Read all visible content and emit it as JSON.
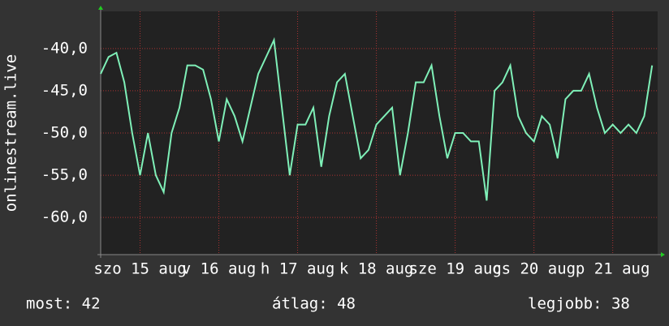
{
  "chart_data": {
    "type": "line",
    "y_label": "onlinestream.live",
    "x": [
      0,
      0.1,
      0.2,
      0.3,
      0.4,
      0.5,
      0.6,
      0.7,
      0.8,
      0.9,
      1,
      1.1,
      1.2,
      1.3,
      1.4,
      1.5,
      1.6,
      1.7,
      1.8,
      1.9,
      2,
      2.1,
      2.2,
      2.3,
      2.4,
      2.5,
      2.6,
      2.7,
      2.8,
      2.9,
      3,
      3.1,
      3.2,
      3.3,
      3.4,
      3.5,
      3.6,
      3.7,
      3.8,
      3.9,
      4,
      4.1,
      4.2,
      4.3,
      4.4,
      4.5,
      4.6,
      4.7,
      4.8,
      4.9,
      5,
      5.1,
      5.2,
      5.3,
      5.4,
      5.5,
      5.6,
      5.7,
      5.8,
      5.9,
      6,
      6.1,
      6.2,
      6.3,
      6.4,
      6.5,
      6.6,
      6.7,
      6.8,
      6.9,
      7
    ],
    "values": [
      -43,
      -41,
      -40.5,
      -44,
      -50,
      -55,
      -50,
      -55,
      -57,
      -50,
      -47,
      -42,
      -42,
      -42.5,
      -46,
      -51,
      -46,
      -48,
      -51,
      -47,
      -43,
      -41,
      -39,
      -47,
      -55,
      -49,
      -49,
      -47,
      -54,
      -48,
      -44,
      -43,
      -48,
      -53,
      -52,
      -49,
      -48,
      -47,
      -55,
      -50,
      -44,
      -44,
      -42,
      -48,
      -53,
      -50,
      -50,
      -51,
      -51,
      -58,
      -45,
      -44,
      -42,
      -48,
      -50,
      -51,
      -48,
      -49,
      -53,
      -46,
      -45,
      -45,
      -43,
      -47,
      -50,
      -49,
      -50,
      -49,
      -50,
      -48,
      -42
    ],
    "color": "#7ff0b8",
    "xlim": [
      0,
      7.07
    ],
    "ylim": [
      -64.4,
      -35.6
    ],
    "xticks": [
      {
        "value": 0.5,
        "label": "szo 15 aug"
      },
      {
        "value": 1.5,
        "label": "v 16 aug"
      },
      {
        "value": 2.5,
        "label": "h 17 aug"
      },
      {
        "value": 3.5,
        "label": "k 18 aug"
      },
      {
        "value": 4.5,
        "label": "sze 19 aug"
      },
      {
        "value": 5.5,
        "label": "cs 20 aug"
      },
      {
        "value": 6.5,
        "label": "p 21 aug"
      }
    ],
    "yticks": [
      {
        "value": -40,
        "label": "-40,0"
      },
      {
        "value": -45,
        "label": "-45,0"
      },
      {
        "value": -50,
        "label": "-50,0"
      },
      {
        "value": -55,
        "label": "-55,0"
      },
      {
        "value": -60,
        "label": "-60,0"
      }
    ],
    "grid": true,
    "footer": [
      "most: 42",
      "átlag: 48",
      "legjobb: 38"
    ]
  }
}
